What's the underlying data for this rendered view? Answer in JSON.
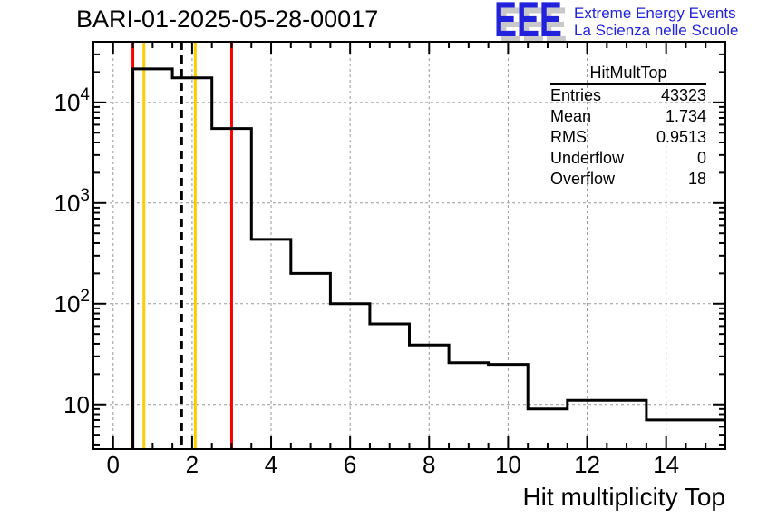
{
  "page": {
    "background": "#ffffff"
  },
  "header": {
    "title": "BARI-01-2025-05-28-00017",
    "logo": {
      "acronym": "EEE",
      "line1": "Extreme Energy Events",
      "line2": "La Scienza nelle Scuole",
      "color": "#2222dd",
      "shadow_color": "#c9c9c9"
    }
  },
  "stats_box": {
    "title": "HitMultTop",
    "rows": [
      {
        "label": "Entries",
        "value": "43323"
      },
      {
        "label": "Mean",
        "value": "1.734"
      },
      {
        "label": "RMS",
        "value": "0.9513"
      },
      {
        "label": "Underflow",
        "value": "0"
      },
      {
        "label": "Overflow",
        "value": "18"
      }
    ]
  },
  "chart_data": {
    "type": "bar",
    "subtype": "step-histogram",
    "title": "BARI-01-2025-05-28-00017",
    "xlabel": "Hit multiplicity Top",
    "ylabel": "",
    "y_scale": "log",
    "x_range": [
      -0.5,
      15.5
    ],
    "y_range": [
      3.6,
      40000
    ],
    "bin_width": 1,
    "bin_centers": [
      1,
      2,
      3,
      4,
      5,
      6,
      7,
      8,
      9,
      10,
      11,
      12,
      13,
      14,
      15
    ],
    "values": [
      21500,
      17500,
      5500,
      435,
      200,
      100,
      63,
      39,
      26,
      25,
      9,
      11,
      11,
      7,
      7
    ],
    "underflow": 0,
    "overflow": 18,
    "entries": 43323,
    "mean": 1.734,
    "rms": 0.9513,
    "x_major_ticks": [
      0,
      2,
      4,
      6,
      8,
      10,
      12,
      14
    ],
    "x_tick_labels": [
      "0",
      "2",
      "4",
      "6",
      "8",
      "10",
      "12",
      "14"
    ],
    "x_minor_tick_step": 0.5,
    "y_major_ticks": [
      10,
      100,
      1000,
      10000
    ],
    "grid": true,
    "grid_color": "#999999",
    "line_color": "#000000",
    "frame_color": "#000000",
    "vertical_lines": [
      {
        "name": "marker-line-red-left",
        "x": 0.5,
        "color": "#ff0000",
        "style": "solid"
      },
      {
        "name": "marker-line-orange-left",
        "x": 0.78,
        "color": "#ffcc00",
        "style": "solid"
      },
      {
        "name": "mean-marker-line-dashed",
        "x": 1.734,
        "color": "#000000",
        "style": "dashed"
      },
      {
        "name": "marker-line-orange-right",
        "x": 2.08,
        "color": "#ffcc00",
        "style": "solid"
      },
      {
        "name": "marker-line-red-right",
        "x": 3.0,
        "color": "#ff0000",
        "style": "solid"
      }
    ]
  }
}
